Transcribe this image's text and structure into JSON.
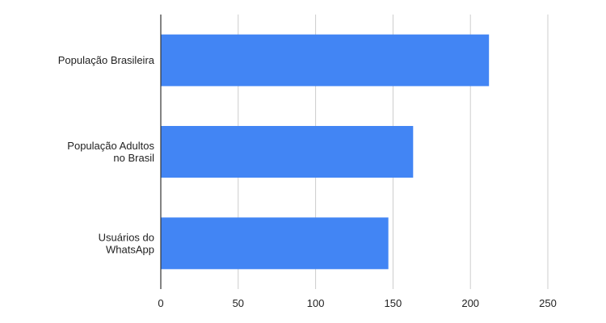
{
  "chart_data": {
    "type": "bar",
    "orientation": "horizontal",
    "categories": [
      [
        "População Brasileira"
      ],
      [
        "População Adultos",
        "no Brasil"
      ],
      [
        "Usuários do",
        "WhatsApp"
      ]
    ],
    "values": [
      212,
      163,
      147
    ],
    "xlim": [
      0,
      250
    ],
    "xticks": [
      0,
      50,
      100,
      150,
      200,
      250
    ],
    "grid": true,
    "legend": "none",
    "title": "",
    "xlabel": "",
    "ylabel": "",
    "bar_color": "#4285f4"
  }
}
